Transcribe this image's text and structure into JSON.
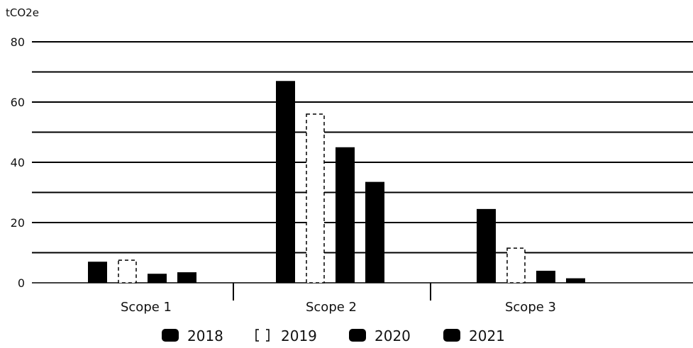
{
  "chart_data": {
    "type": "bar",
    "ylabel": "tCO2e",
    "xlabel": "",
    "title": "",
    "ylim": [
      0,
      80
    ],
    "y_ticks": [
      0,
      20,
      40,
      60,
      80
    ],
    "grid": true,
    "gridlines": [
      10,
      20,
      30,
      40,
      50,
      60,
      70,
      80
    ],
    "legend_position": "bottom",
    "categories": [
      "Scope 1",
      "Scope 2",
      "Scope 3"
    ],
    "series": [
      {
        "name": "2018",
        "values": [
          7,
          67,
          24.5
        ],
        "color": "#000000",
        "style": "solid"
      },
      {
        "name": "2019",
        "values": [
          7.5,
          56,
          11.5
        ],
        "color": "#ffffff",
        "style": "dashed-outline"
      },
      {
        "name": "2020",
        "values": [
          3,
          45,
          4
        ],
        "color": "#000000",
        "style": "solid"
      },
      {
        "name": "2021",
        "values": [
          3.5,
          33.5,
          1.5
        ],
        "color": "#000000",
        "style": "solid"
      }
    ]
  }
}
